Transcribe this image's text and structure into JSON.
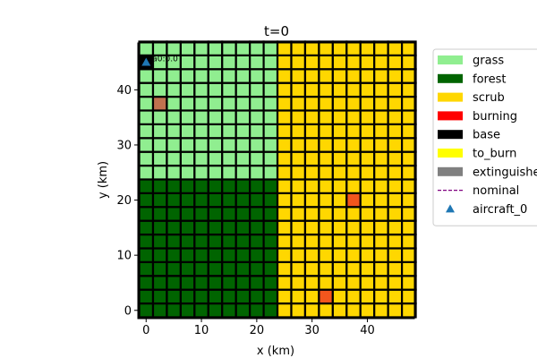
{
  "chart_data": {
    "type": "heatmap",
    "title": "t=0",
    "xlabel": "x (km)",
    "ylabel": "y (km)",
    "xlim": [
      -1.5,
      48.5
    ],
    "ylim": [
      -1.5,
      48.5
    ],
    "xticks": [
      0,
      10,
      20,
      30,
      40
    ],
    "yticks": [
      0,
      10,
      20,
      30,
      40
    ],
    "cell_size_km": 2.5,
    "grid_cols": 20,
    "grid_rows": 20,
    "grid_line_color": "#000000",
    "regions": [
      {
        "kind": "grass",
        "x_range": [
          0,
          22.5
        ],
        "y_range": [
          25,
          47.5
        ]
      },
      {
        "kind": "forest",
        "x_range": [
          0,
          22.5
        ],
        "y_range": [
          0,
          22.5
        ]
      },
      {
        "kind": "scrub",
        "x_range": [
          25,
          47.5
        ],
        "y_range": [
          0,
          47.5
        ]
      }
    ],
    "highlight_cells": [
      {
        "x": 2.5,
        "y": 37.5,
        "color": "#c0714f"
      },
      {
        "x": 37.5,
        "y": 20,
        "color": "#f2561d"
      },
      {
        "x": 32.5,
        "y": 2.5,
        "color": "#f2561d"
      }
    ],
    "base_cell": {
      "x": 0,
      "y": 45
    },
    "aircraft": [
      {
        "name": "aircraft_0",
        "x": 0,
        "y": 45,
        "annotation": "a0:0.0"
      }
    ],
    "legend": {
      "placement": "outside-right",
      "entries": [
        {
          "label": "grass",
          "marker": "patch",
          "color": "#90ee90"
        },
        {
          "label": "forest",
          "marker": "patch",
          "color": "#006400"
        },
        {
          "label": "scrub",
          "marker": "patch",
          "color": "#ffd700"
        },
        {
          "label": "burning",
          "marker": "patch",
          "color": "#ff0000"
        },
        {
          "label": "base",
          "marker": "patch",
          "color": "#000000"
        },
        {
          "label": "to_burn",
          "marker": "patch",
          "color": "#ffff00"
        },
        {
          "label": "extinguished",
          "marker": "patch",
          "color": "#808080"
        },
        {
          "label": "nominal",
          "marker": "dashed",
          "color": "#800080"
        },
        {
          "label": "aircraft_0",
          "marker": "triangle",
          "color": "#1f77b4"
        }
      ]
    },
    "colors": {
      "grass": "#90ee90",
      "forest": "#006400",
      "scrub": "#ffd700",
      "base": "#000000",
      "aircraft": "#1f77b4"
    }
  }
}
